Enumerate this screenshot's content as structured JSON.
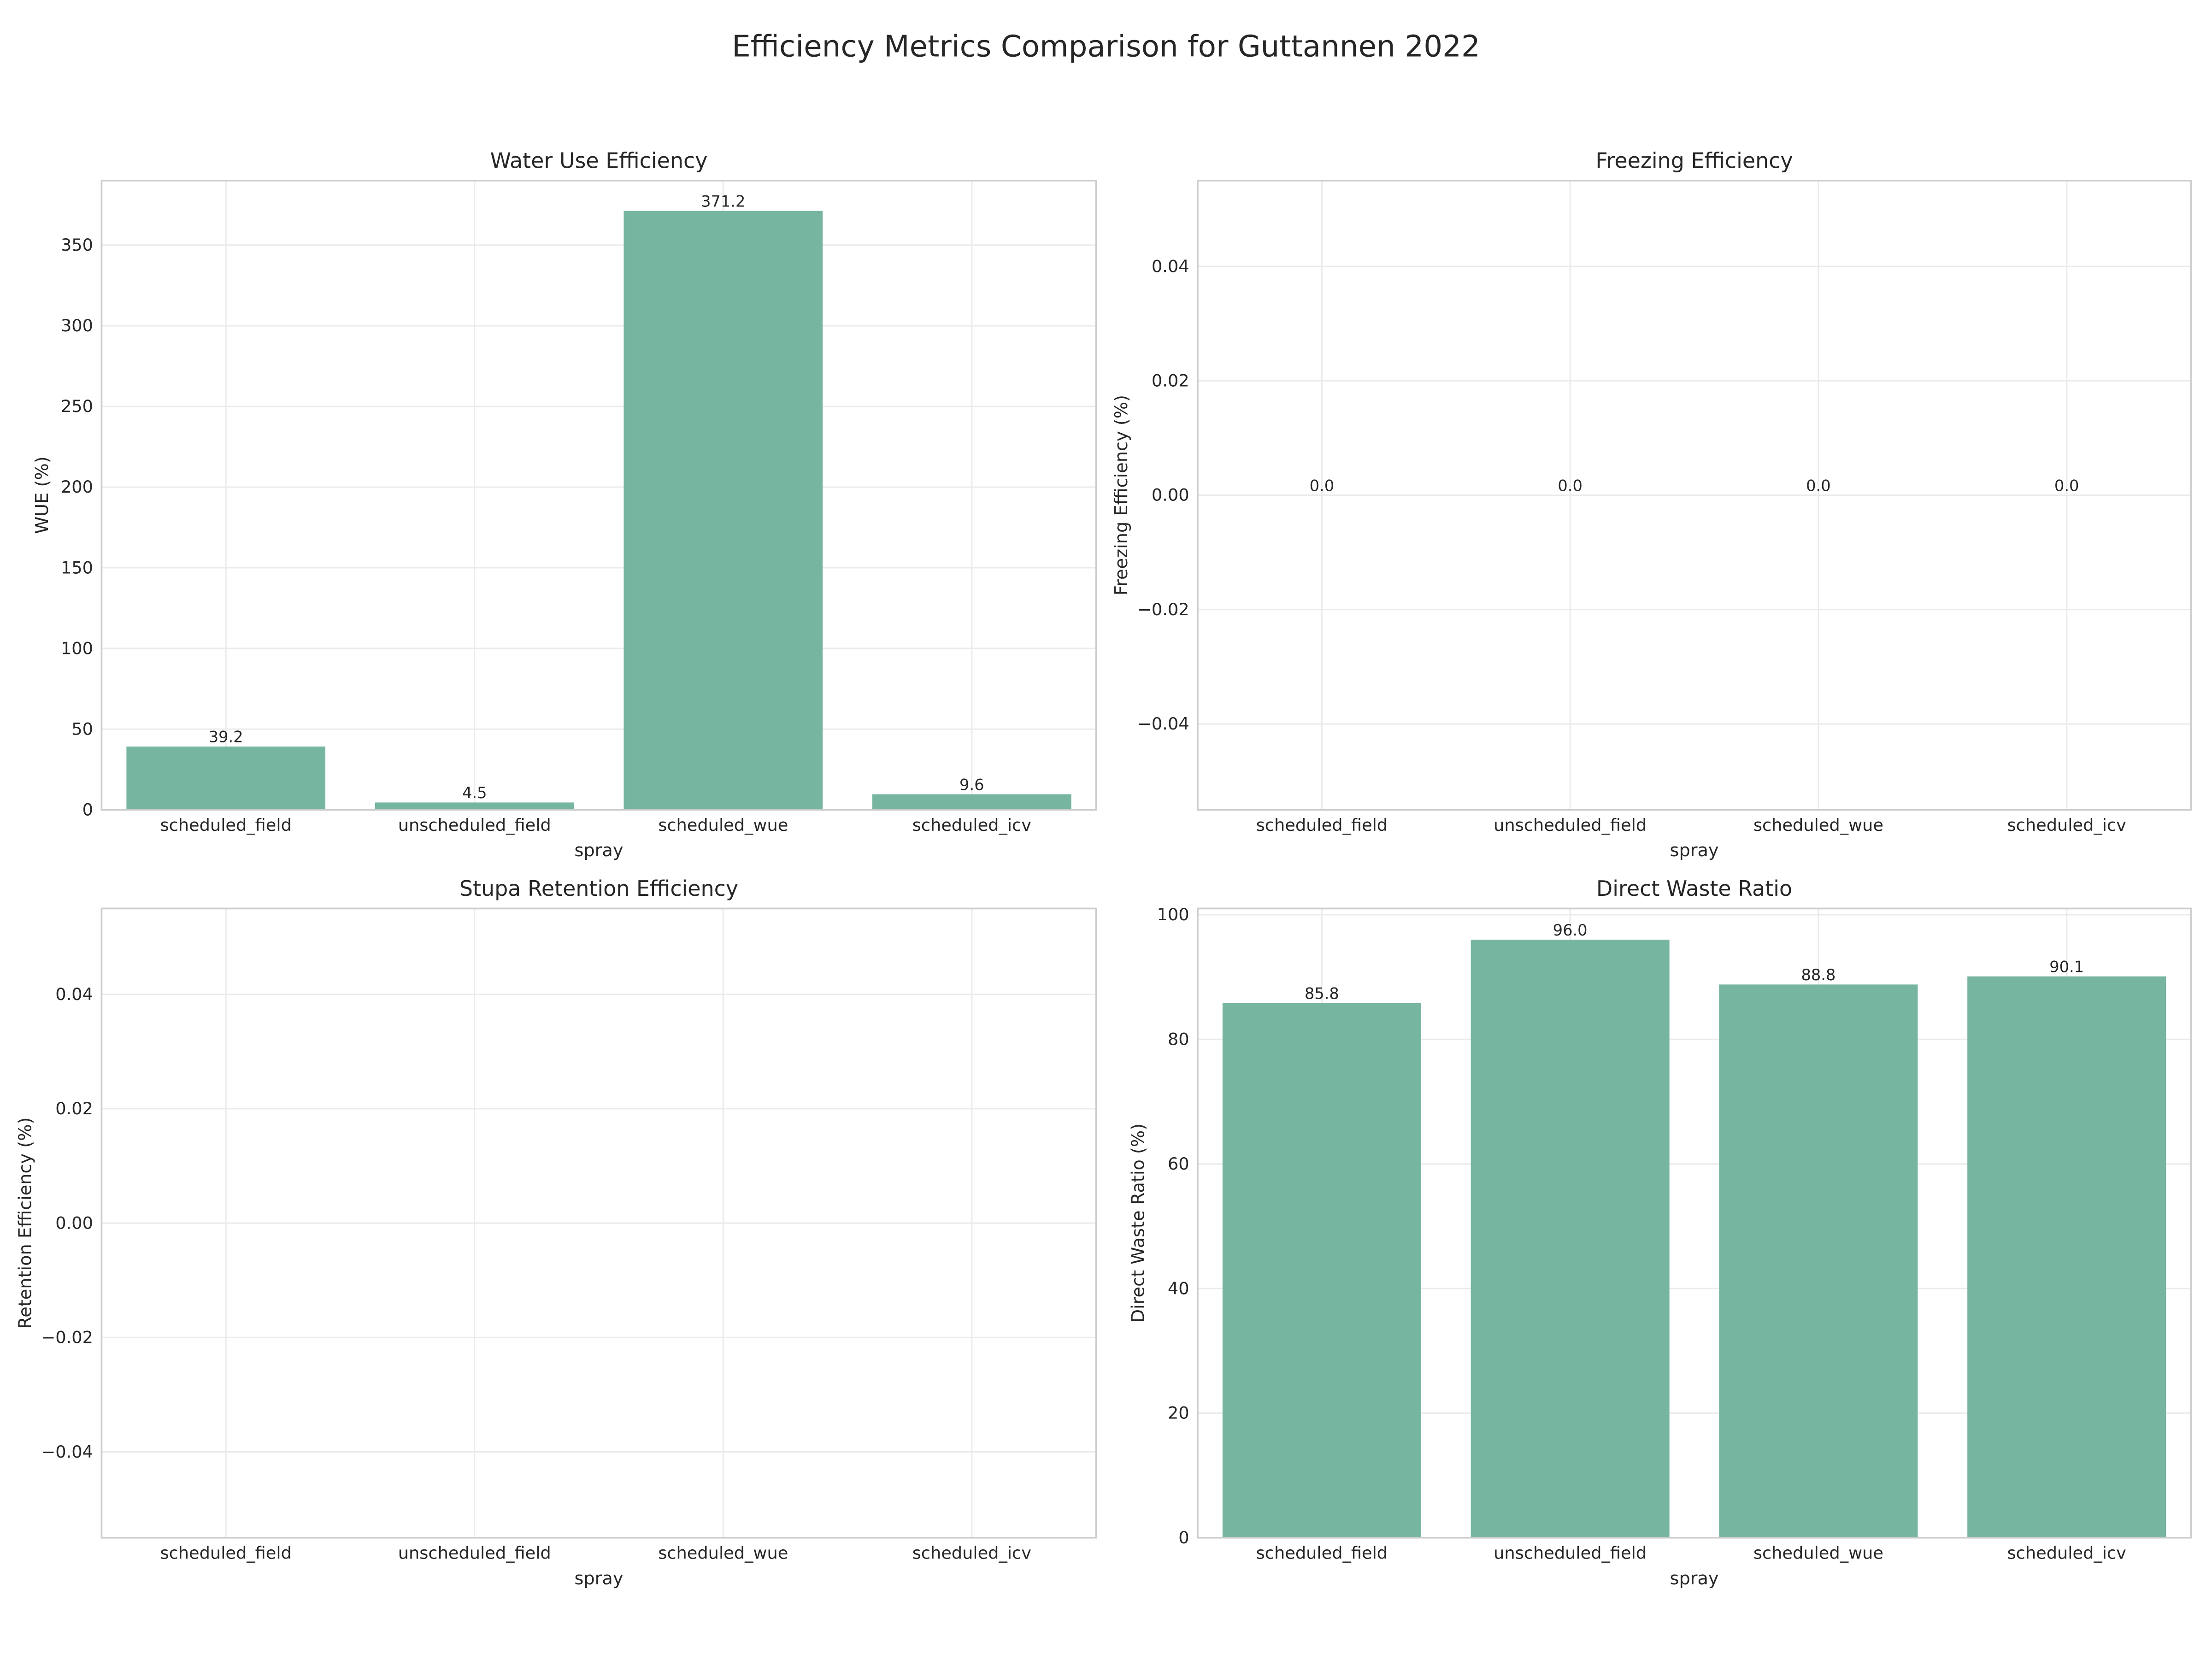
{
  "title": "Efficiency Metrics Comparison for Guttannen 2022",
  "chart_data": [
    {
      "type": "bar",
      "title": "Water Use Efficiency",
      "xlabel": "spray",
      "ylabel": "WUE (%)",
      "categories": [
        "scheduled_field",
        "unscheduled_field",
        "scheduled_wue",
        "scheduled_icv"
      ],
      "values": [
        39.2,
        4.5,
        371.2,
        9.6
      ],
      "value_labels": [
        "39.2",
        "4.5",
        "371.2",
        "9.6"
      ],
      "color": "#76b5a0",
      "ylim": [
        0,
        390
      ],
      "yticks": [
        0,
        50,
        100,
        150,
        200,
        250,
        300,
        350
      ],
      "grid": true
    },
    {
      "type": "bar",
      "title": "Freezing Efficiency",
      "xlabel": "spray",
      "ylabel": "Freezing Efficiency (%)",
      "categories": [
        "scheduled_field",
        "unscheduled_field",
        "scheduled_wue",
        "scheduled_icv"
      ],
      "values": [
        0,
        0,
        0,
        0
      ],
      "value_labels": [
        "0.0",
        "0.0",
        "0.0",
        "0.0"
      ],
      "color": "#76b5a0",
      "ylim": [
        -0.055,
        0.055
      ],
      "yticks": [
        {
          "value": -0.04,
          "label": "−0.04"
        },
        {
          "value": -0.02,
          "label": "−0.02"
        },
        {
          "value": 0,
          "label": "0.00"
        },
        0.02,
        0.04
      ],
      "grid": true
    },
    {
      "type": "bar",
      "title": "Stupa Retention Efficiency",
      "xlabel": "spray",
      "ylabel": "Retention Efficiency (%)",
      "categories": [
        "scheduled_field",
        "unscheduled_field",
        "scheduled_wue",
        "scheduled_icv"
      ],
      "values": [
        null,
        null,
        null,
        null
      ],
      "color": "#76b5a0",
      "ylim": [
        -0.055,
        0.055
      ],
      "yticks": [
        {
          "value": -0.04,
          "label": "−0.04"
        },
        {
          "value": -0.02,
          "label": "−0.02"
        },
        {
          "value": 0,
          "label": "0.00"
        },
        0.02,
        0.04
      ],
      "grid": true
    },
    {
      "type": "bar",
      "title": "Direct Waste Ratio",
      "xlabel": "spray",
      "ylabel": "Direct Waste Ratio (%)",
      "categories": [
        "scheduled_field",
        "unscheduled_field",
        "scheduled_wue",
        "scheduled_icv"
      ],
      "values": [
        85.8,
        96.0,
        88.8,
        90.1
      ],
      "value_labels": [
        "85.8",
        "96.0",
        "88.8",
        "90.1"
      ],
      "color": "#76b5a0",
      "ylim": [
        0,
        101
      ],
      "yticks": [
        0,
        20,
        40,
        60,
        80,
        100
      ],
      "grid": true
    }
  ]
}
